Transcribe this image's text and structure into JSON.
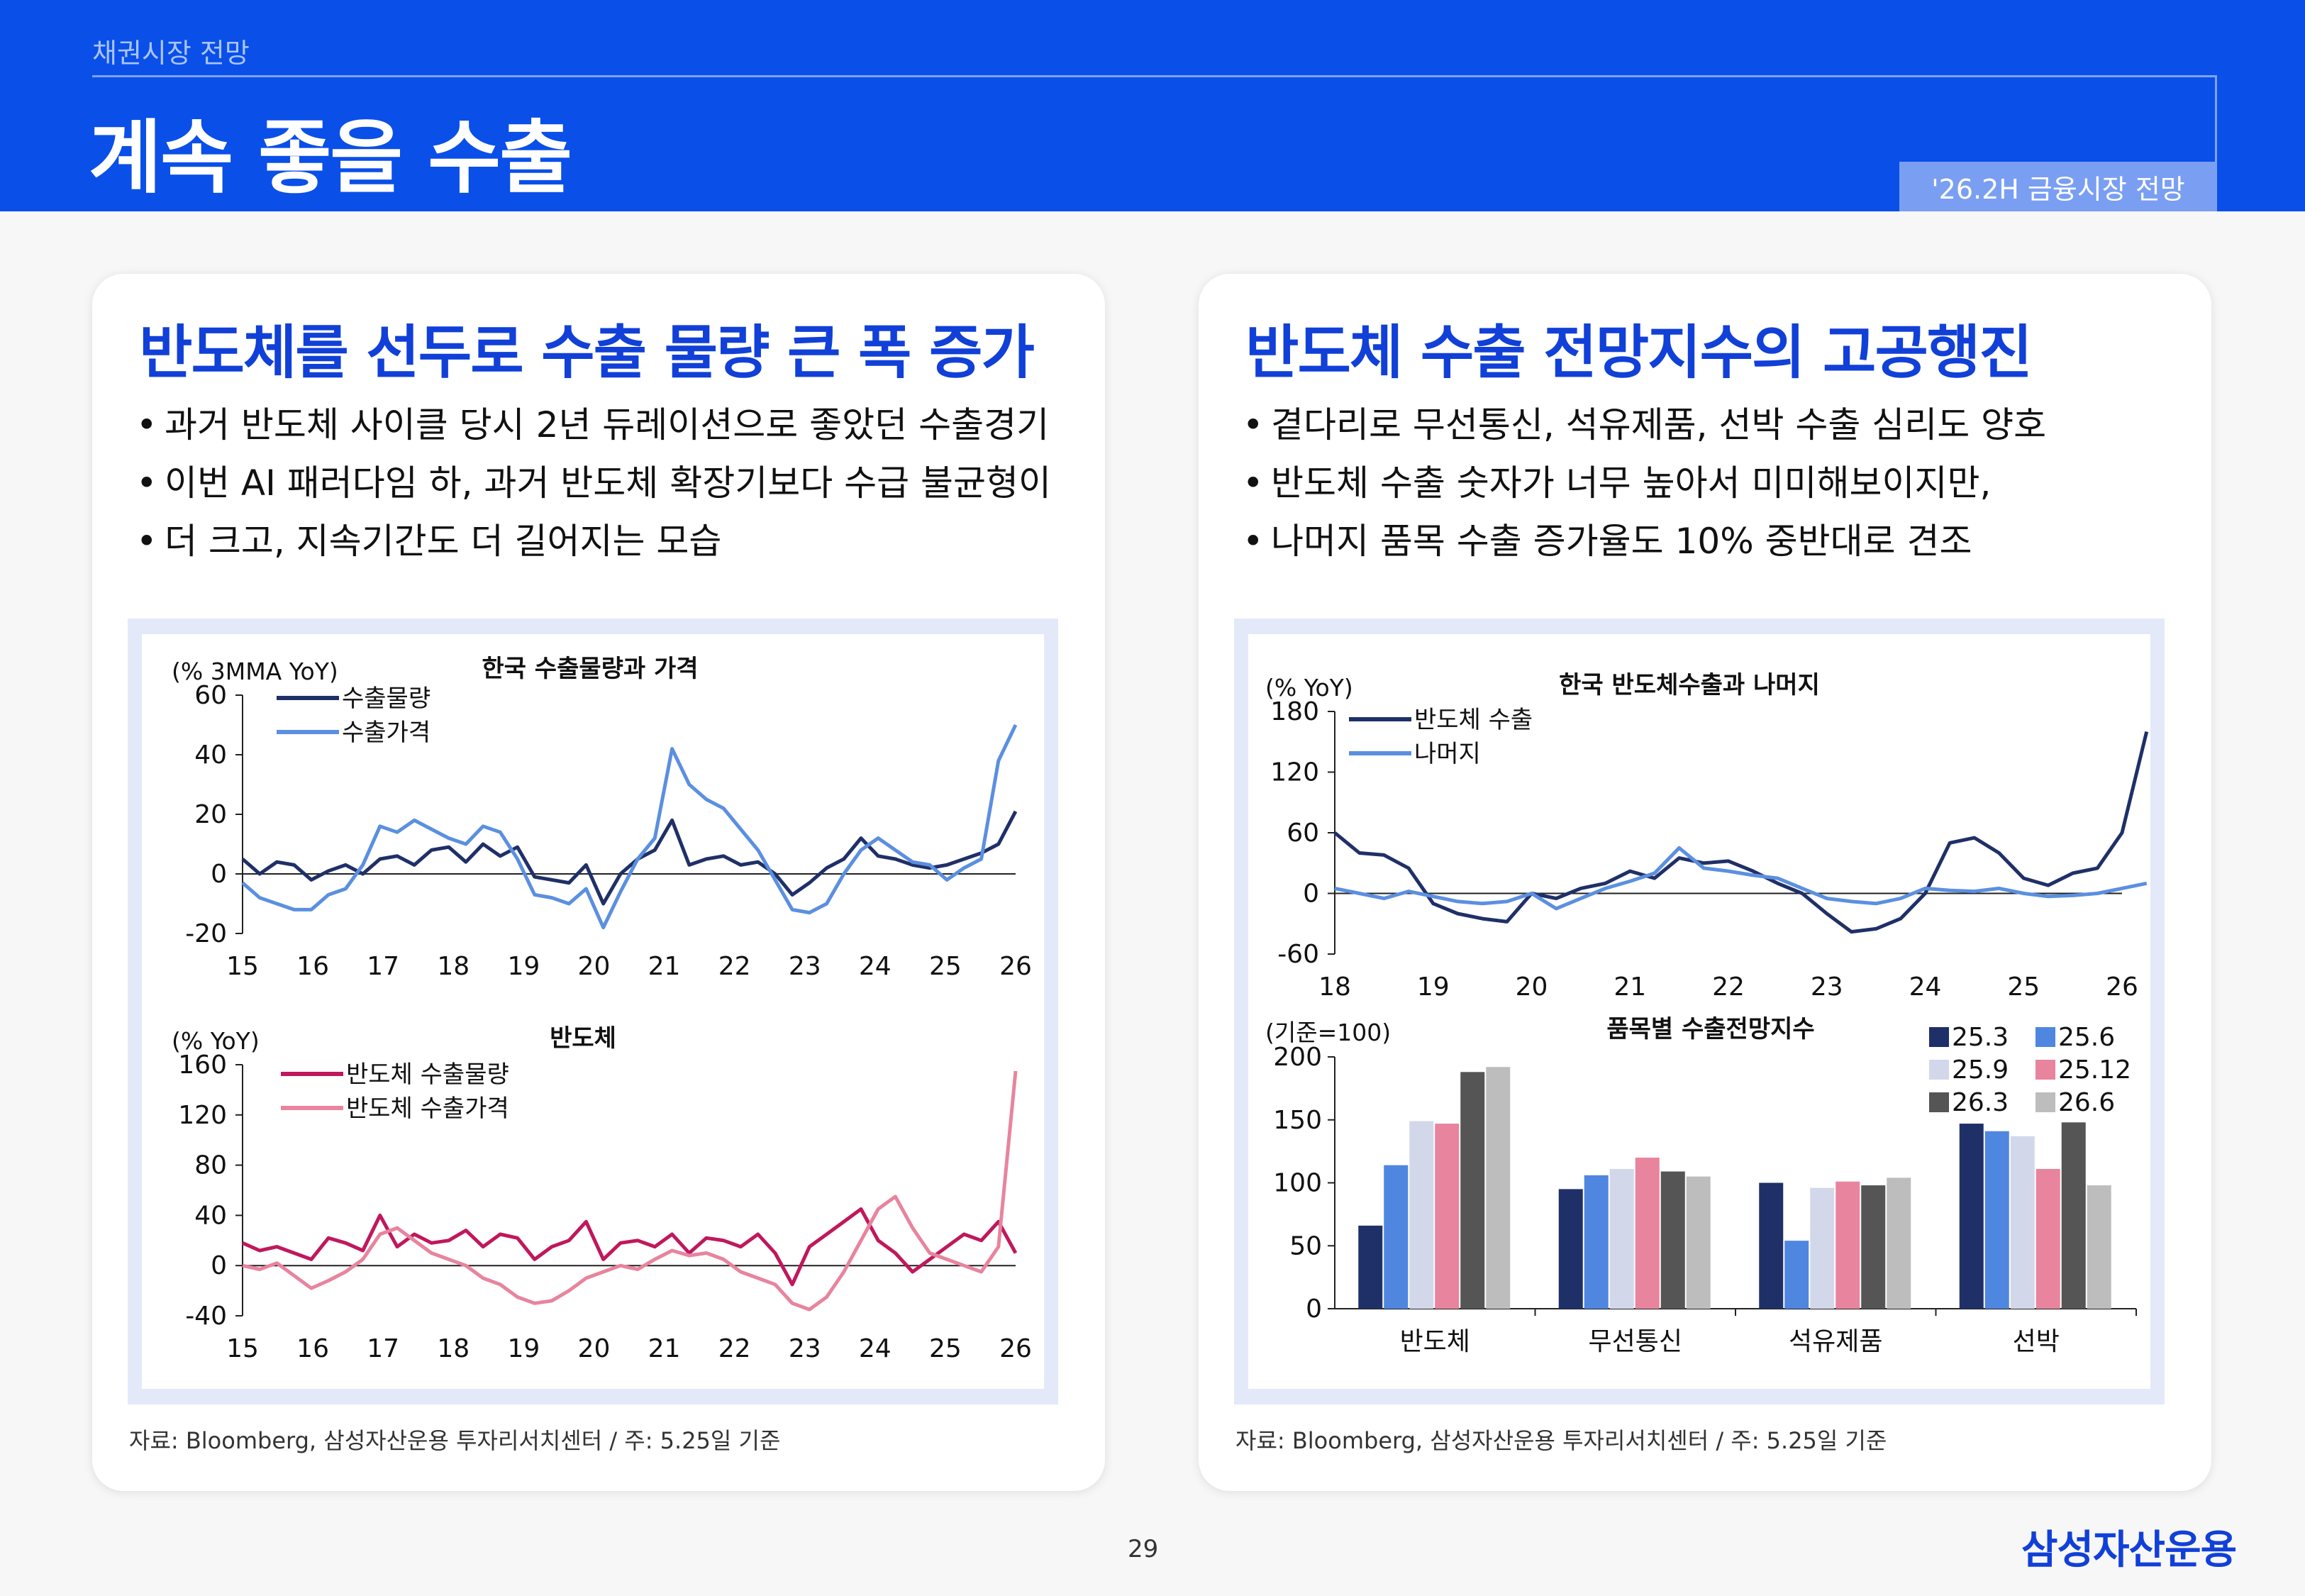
{
  "header": {
    "tag": "채권시장 전망",
    "title": "계속 좋을 수출",
    "badge": "'26.2H 금융시장 전망"
  },
  "left": {
    "title": "반도체를 선두로 수출 물량 큰 폭 증가",
    "bullets": [
      "과거 반도체 사이클 당시 2년 듀레이션으로 좋았던 수출경기",
      "이번 AI 패러다임 하, 과거 반도체 확장기보다 수급 불균형이",
      "더 크고, 지속기간도 더 길어지는 모습"
    ],
    "source": "자료: Bloomberg, 삼성자산운용 투자리서치센터 / 주: 5.25일 기준"
  },
  "right": {
    "title": "반도체 수출 전망지수의 고공행진",
    "bullets": [
      "곁다리로 무선통신, 석유제품, 선박 수출 심리도 양호",
      "반도체 수출 숫자가 너무 높아서 미미해보이지만,",
      "나머지 품목 수출 증가율도 10% 중반대로 견조"
    ],
    "source": "자료: Bloomberg, 삼성자산운용 투자리서치센터 / 주: 5.25일 기준"
  },
  "footer": {
    "page": "29",
    "logo": "삼성자산운용"
  },
  "colors": {
    "navy": "#1f3068",
    "blue": "#5b8fe0",
    "magenta": "#c0185c",
    "pink": "#e8849e"
  },
  "chart_data": [
    {
      "type": "line",
      "title": "한국 수출물량과 가격",
      "unit": "(% 3MMA YoY)",
      "x_ticks": [
        "15",
        "16",
        "17",
        "18",
        "19",
        "20",
        "21",
        "22",
        "23",
        "24",
        "25",
        "26"
      ],
      "x": [
        2015.0,
        2015.25,
        2015.5,
        2015.75,
        2016.0,
        2016.25,
        2016.5,
        2016.75,
        2017.0,
        2017.25,
        2017.5,
        2017.75,
        2018.0,
        2018.25,
        2018.5,
        2018.75,
        2019.0,
        2019.25,
        2019.5,
        2019.75,
        2020.0,
        2020.25,
        2020.5,
        2020.75,
        2021.0,
        2021.25,
        2021.5,
        2021.75,
        2022.0,
        2022.25,
        2022.5,
        2022.75,
        2023.0,
        2023.25,
        2023.5,
        2023.75,
        2024.0,
        2024.25,
        2024.5,
        2024.75,
        2025.0,
        2025.25,
        2025.5,
        2025.75,
        2026.0,
        2026.25
      ],
      "ylim": [
        -20,
        60
      ],
      "y_ticks": [
        -20,
        0,
        20,
        40,
        60
      ],
      "series": [
        {
          "name": "수출물량",
          "values": [
            5,
            0,
            4,
            3,
            -2,
            1,
            3,
            0,
            5,
            6,
            3,
            8,
            9,
            4,
            10,
            6,
            9,
            -1,
            -2,
            -3,
            3,
            -10,
            0,
            5,
            8,
            18,
            3,
            5,
            6,
            3,
            4,
            0,
            -7,
            -3,
            2,
            5,
            12,
            6,
            5,
            3,
            2,
            3,
            5,
            7,
            10,
            21
          ]
        },
        {
          "name": "수출가격",
          "values": [
            -3,
            -8,
            -10,
            -12,
            -12,
            -7,
            -5,
            3,
            16,
            14,
            18,
            15,
            12,
            10,
            16,
            14,
            5,
            -7,
            -8,
            -10,
            -5,
            -18,
            -6,
            5,
            12,
            42,
            30,
            25,
            22,
            15,
            8,
            -2,
            -12,
            -13,
            -10,
            0,
            8,
            12,
            8,
            4,
            3,
            -2,
            2,
            5,
            38,
            50
          ]
        }
      ]
    },
    {
      "type": "line",
      "title": "반도체",
      "unit": "(% YoY)",
      "x_ticks": [
        "15",
        "16",
        "17",
        "18",
        "19",
        "20",
        "21",
        "22",
        "23",
        "24",
        "25",
        "26"
      ],
      "x": [
        2015.0,
        2015.25,
        2015.5,
        2015.75,
        2016.0,
        2016.25,
        2016.5,
        2016.75,
        2017.0,
        2017.25,
        2017.5,
        2017.75,
        2018.0,
        2018.25,
        2018.5,
        2018.75,
        2019.0,
        2019.25,
        2019.5,
        2019.75,
        2020.0,
        2020.25,
        2020.5,
        2020.75,
        2021.0,
        2021.25,
        2021.5,
        2021.75,
        2022.0,
        2022.25,
        2022.5,
        2022.75,
        2023.0,
        2023.25,
        2023.5,
        2023.75,
        2024.0,
        2024.25,
        2024.5,
        2024.75,
        2025.0,
        2025.25,
        2025.5,
        2025.75,
        2026.0,
        2026.25
      ],
      "ylim": [
        -40,
        160
      ],
      "y_ticks": [
        -40,
        0,
        40,
        80,
        120,
        160
      ],
      "series": [
        {
          "name": "반도체 수출물량",
          "values": [
            18,
            12,
            15,
            10,
            5,
            22,
            18,
            12,
            40,
            15,
            25,
            18,
            20,
            28,
            15,
            25,
            22,
            5,
            15,
            20,
            35,
            5,
            18,
            20,
            15,
            25,
            10,
            22,
            20,
            15,
            25,
            10,
            -15,
            15,
            25,
            35,
            45,
            20,
            10,
            -5,
            5,
            15,
            25,
            20,
            35,
            10
          ]
        },
        {
          "name": "반도체 수출가격",
          "values": [
            0,
            -3,
            2,
            -8,
            -18,
            -12,
            -5,
            5,
            25,
            30,
            20,
            10,
            5,
            0,
            -10,
            -15,
            -25,
            -30,
            -28,
            -20,
            -10,
            -5,
            0,
            -3,
            5,
            12,
            8,
            10,
            5,
            -5,
            -10,
            -15,
            -30,
            -35,
            -25,
            -5,
            20,
            45,
            55,
            30,
            10,
            5,
            0,
            -5,
            15,
            155
          ]
        }
      ]
    },
    {
      "type": "line",
      "title": "한국 반도체수출과 나머지",
      "unit": "(% YoY)",
      "x_ticks": [
        "18",
        "19",
        "20",
        "21",
        "22",
        "23",
        "24",
        "25",
        "26"
      ],
      "x": [
        2018.0,
        2018.25,
        2018.5,
        2018.75,
        2019.0,
        2019.25,
        2019.5,
        2019.75,
        2020.0,
        2020.25,
        2020.5,
        2020.75,
        2021.0,
        2021.25,
        2021.5,
        2021.75,
        2022.0,
        2022.25,
        2022.5,
        2022.75,
        2023.0,
        2023.25,
        2023.5,
        2023.75,
        2024.0,
        2024.25,
        2024.5,
        2024.75,
        2025.0,
        2025.25,
        2025.5,
        2025.75,
        2026.0,
        2026.25
      ],
      "ylim": [
        -60,
        180
      ],
      "y_ticks": [
        -60,
        0,
        60,
        120,
        180
      ],
      "series": [
        {
          "name": "반도체 수출",
          "values": [
            60,
            40,
            38,
            25,
            -10,
            -20,
            -25,
            -28,
            0,
            -5,
            5,
            10,
            22,
            15,
            35,
            30,
            32,
            22,
            10,
            0,
            -20,
            -38,
            -35,
            -25,
            0,
            50,
            55,
            40,
            15,
            8,
            20,
            25,
            60,
            160
          ]
        },
        {
          "name": "나머지",
          "values": [
            5,
            0,
            -5,
            2,
            -3,
            -8,
            -10,
            -8,
            0,
            -15,
            -5,
            5,
            12,
            20,
            45,
            25,
            22,
            18,
            15,
            5,
            -5,
            -8,
            -10,
            -5,
            5,
            3,
            2,
            5,
            0,
            -3,
            -2,
            0,
            5,
            10
          ]
        }
      ]
    },
    {
      "type": "bar",
      "title": "품목별 수출전망지수",
      "unit": "(기준=100)",
      "categories": [
        "반도체",
        "무선통신",
        "석유제품",
        "선박"
      ],
      "ylim": [
        0,
        200
      ],
      "y_ticks": [
        0,
        50,
        100,
        150,
        200
      ],
      "series": [
        {
          "name": "25.3",
          "color": "#1f3068",
          "values": [
            66,
            95,
            100,
            147
          ]
        },
        {
          "name": "25.6",
          "color": "#4f86e0",
          "values": [
            114,
            106,
            54,
            141
          ]
        },
        {
          "name": "25.9",
          "color": "#d3d7ea",
          "values": [
            149,
            111,
            96,
            137
          ]
        },
        {
          "name": "25.12",
          "color": "#e8849e",
          "values": [
            147,
            120,
            101,
            111
          ]
        },
        {
          "name": "26.3",
          "color": "#555555",
          "values": [
            188,
            109,
            98,
            148
          ]
        },
        {
          "name": "26.6",
          "color": "#bdbdbd",
          "values": [
            192,
            105,
            104,
            98
          ]
        }
      ]
    }
  ]
}
